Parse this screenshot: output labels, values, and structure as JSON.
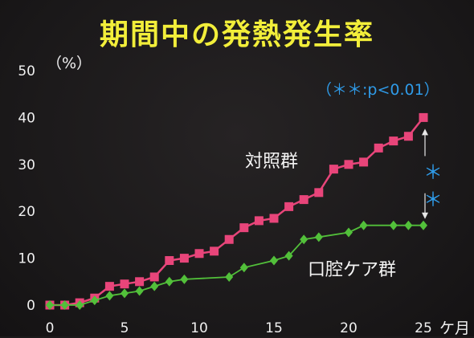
{
  "chart_data": {
    "type": "line",
    "title": "期間中の発熱発生率",
    "ylabel": "（%）",
    "xunit": "ケ月",
    "xlim": [
      0,
      25
    ],
    "ylim": [
      0,
      50
    ],
    "x_ticks": [
      0,
      5,
      10,
      15,
      20,
      25
    ],
    "y_ticks": [
      0,
      10,
      20,
      30,
      40,
      50
    ],
    "annotation": "（＊＊:p<0.01）",
    "significance_marks": [
      "＊",
      "＊"
    ],
    "colors": {
      "control": "#e8457a",
      "oral_care": "#52c03a",
      "note": "#2f9be8",
      "title": "#f2ee3a"
    },
    "series": [
      {
        "name": "対照群",
        "key": "control",
        "marker": "square",
        "x": [
          0,
          1,
          2,
          3,
          4,
          5,
          6,
          7,
          8,
          9,
          10,
          11,
          12,
          13,
          14,
          15,
          16,
          17,
          18,
          19,
          20,
          21,
          22,
          23,
          24,
          25
        ],
        "values": [
          0,
          0,
          0.5,
          1.5,
          4,
          4.5,
          5,
          6,
          9.5,
          10,
          11,
          11.5,
          14,
          16.5,
          18,
          18.5,
          21,
          22.5,
          24,
          29,
          30,
          30.5,
          33.5,
          35,
          36,
          40
        ]
      },
      {
        "name": "口腔ケア群",
        "key": "oral_care",
        "marker": "diamond",
        "x": [
          0,
          1,
          2,
          3,
          4,
          5,
          6,
          7,
          8,
          9,
          12,
          13,
          15,
          16,
          17,
          18,
          20,
          21,
          23,
          24,
          25
        ],
        "values": [
          0,
          0,
          0,
          1,
          2,
          2.5,
          3,
          4,
          5,
          5.5,
          6,
          8,
          9.5,
          10.5,
          14,
          14.5,
          15.5,
          17,
          17,
          17,
          17
        ]
      }
    ]
  }
}
